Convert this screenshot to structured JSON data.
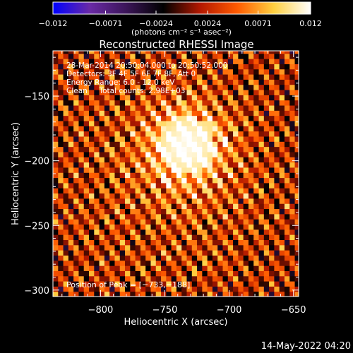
{
  "chart_data": {
    "type": "heatmap",
    "title": "Reconstructed RHESSI Image",
    "xlabel": "Heliocentric X (arcsec)",
    "ylabel": "Heliocentric Y (arcsec)",
    "xlim": [
      -837,
      -646
    ],
    "ylim": [
      -305,
      -115
    ],
    "x_ticks": [
      -800,
      -750,
      -700,
      -650
    ],
    "y_ticks": [
      -300,
      -250,
      -200,
      -150
    ],
    "x_tick_labels": [
      "−800",
      "−750",
      "−700",
      "−650"
    ],
    "y_tick_labels": [
      "−300",
      "−250",
      "−200",
      "−150"
    ],
    "colorbar": {
      "range": [
        -0.012,
        0.012
      ],
      "ticks": [
        -0.012,
        -0.0071,
        -0.0024,
        0.0024,
        0.0071,
        0.012
      ],
      "tick_labels": [
        "−0.012",
        "−0.0071",
        "−0.0024",
        "0.0024",
        "0.0071",
        "0.012"
      ],
      "unit_label": "(photons cm⁻² s⁻¹ asec⁻²)",
      "colors": [
        "#0000ff",
        "#6a2aa6",
        "#3b1558",
        "#000000",
        "#b31800",
        "#ff5a00",
        "#ffd040",
        "#ffffff"
      ]
    },
    "peak": [
      -733,
      -188
    ],
    "stripe_angle_deg": 55,
    "stripe_period_arcsec": 11,
    "annotations": [
      "28-Mar-2014 20:50:04.000 to 20:50:52.000",
      "Detectors: 3F 4F 5F 6F 7F 8F, Att 0",
      "Energy Range: 6.0 - 12.0 keV",
      "Clean     Total counts: 2.98E+03"
    ],
    "peak_label": "Position of Peak = [−733,−188]",
    "timestamp": "14-May-2022 04:20"
  }
}
